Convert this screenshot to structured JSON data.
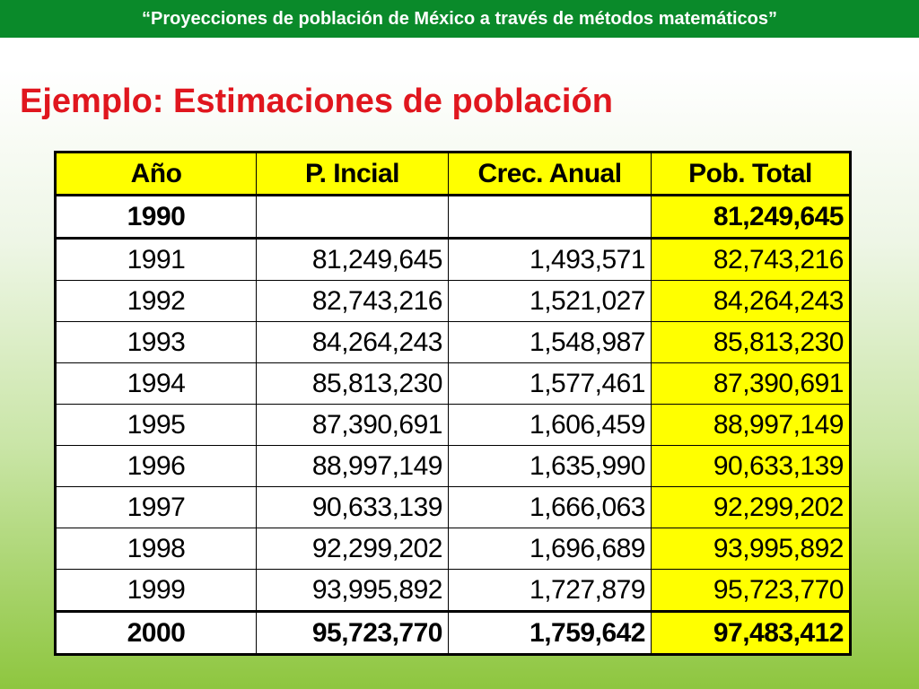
{
  "header": {
    "title": "“Proyecciones de población de México a través de métodos matemáticos”"
  },
  "heading": "Ejemplo: Estimaciones de población",
  "table": {
    "columns": [
      "Año",
      "P. Incial",
      "Crec. Anual",
      "Pob. Total"
    ],
    "rows": [
      [
        "1990",
        "",
        "",
        "81,249,645"
      ],
      [
        "1991",
        "81,249,645",
        "1,493,571",
        "82,743,216"
      ],
      [
        "1992",
        "82,743,216",
        "1,521,027",
        "84,264,243"
      ],
      [
        "1993",
        "84,264,243",
        "1,548,987",
        "85,813,230"
      ],
      [
        "1994",
        "85,813,230",
        "1,577,461",
        "87,390,691"
      ],
      [
        "1995",
        "87,390,691",
        "1,606,459",
        "88,997,149"
      ],
      [
        "1996",
        "88,997,149",
        "1,635,990",
        "90,633,139"
      ],
      [
        "1997",
        "90,633,139",
        "1,666,063",
        "92,299,202"
      ],
      [
        "1998",
        "92,299,202",
        "1,696,689",
        "93,995,892"
      ],
      [
        "1999",
        "93,995,892",
        "1,727,879",
        "95,723,770"
      ],
      [
        "2000",
        "95,723,770",
        "1,759,642",
        "97,483,412"
      ]
    ]
  },
  "colors": {
    "header_bar": "#0a8a2a",
    "heading": "#e0161e",
    "highlight": "#ffff00"
  }
}
